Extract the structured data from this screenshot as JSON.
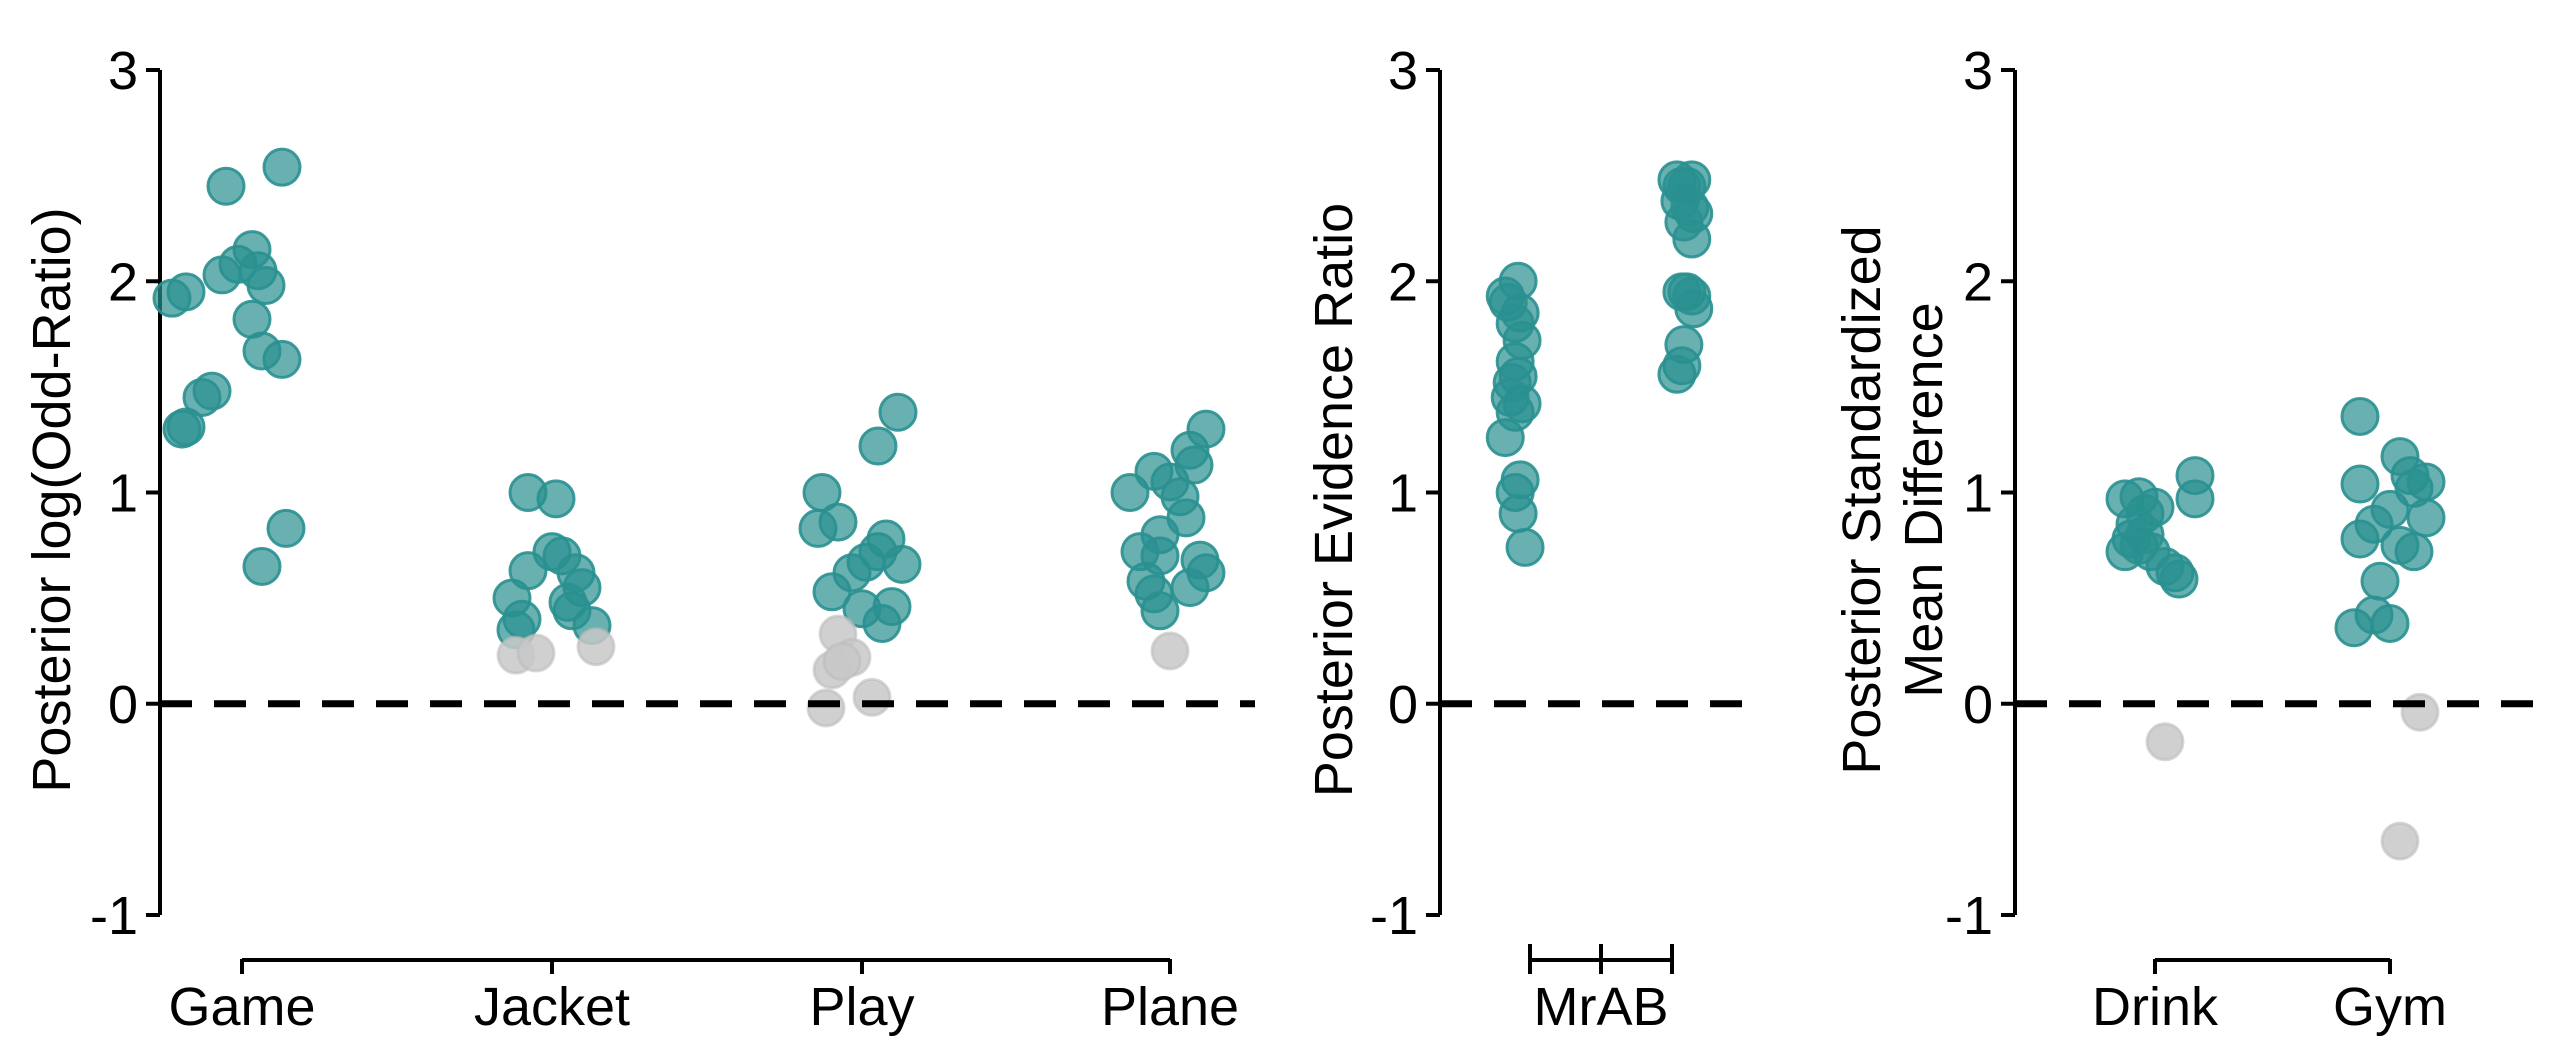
{
  "colors": {
    "significant": "#2a9090",
    "nonsignificant": "#c8c8c8"
  },
  "chart_data": [
    {
      "type": "scatter",
      "ylabel": "Posterior log(Odd-Ratio)",
      "ylim": [
        -1,
        3
      ],
      "yticks": [
        "-1",
        "0",
        "1",
        "2",
        "3"
      ],
      "reference_line": 0,
      "categories": [
        "Game",
        "Jacket",
        "Play",
        "Plane"
      ],
      "points": [
        {
          "c": 0,
          "j": -0.35,
          "y": 1.92,
          "s": 1
        },
        {
          "c": 0,
          "j": -0.28,
          "y": 1.95,
          "s": 1
        },
        {
          "c": 0,
          "j": -0.08,
          "y": 2.45,
          "s": 1
        },
        {
          "c": 0,
          "j": 0.2,
          "y": 2.54,
          "s": 1
        },
        {
          "c": 0,
          "j": -0.1,
          "y": 2.03,
          "s": 1
        },
        {
          "c": 0,
          "j": 0.05,
          "y": 2.15,
          "s": 1
        },
        {
          "c": 0,
          "j": -0.02,
          "y": 2.08,
          "s": 1
        },
        {
          "c": 0,
          "j": 0.08,
          "y": 2.05,
          "s": 1
        },
        {
          "c": 0,
          "j": 0.12,
          "y": 1.98,
          "s": 1
        },
        {
          "c": 0,
          "j": 0.05,
          "y": 1.82,
          "s": 1
        },
        {
          "c": 0,
          "j": 0.1,
          "y": 1.67,
          "s": 1
        },
        {
          "c": 0,
          "j": 0.2,
          "y": 1.63,
          "s": 1
        },
        {
          "c": 0,
          "j": -0.15,
          "y": 1.48,
          "s": 1
        },
        {
          "c": 0,
          "j": -0.2,
          "y": 1.45,
          "s": 1
        },
        {
          "c": 0,
          "j": -0.3,
          "y": 1.3,
          "s": 1
        },
        {
          "c": 0,
          "j": -0.28,
          "y": 1.31,
          "s": 1
        },
        {
          "c": 0,
          "j": 0.22,
          "y": 0.83,
          "s": 1
        },
        {
          "c": 0,
          "j": 0.1,
          "y": 0.65,
          "s": 1
        },
        {
          "c": 1,
          "j": -0.12,
          "y": 1.0,
          "s": 1
        },
        {
          "c": 1,
          "j": 0.02,
          "y": 0.97,
          "s": 1
        },
        {
          "c": 1,
          "j": -0.12,
          "y": 0.63,
          "s": 1
        },
        {
          "c": 1,
          "j": 0.0,
          "y": 0.72,
          "s": 1
        },
        {
          "c": 1,
          "j": 0.05,
          "y": 0.7,
          "s": 1
        },
        {
          "c": 1,
          "j": 0.12,
          "y": 0.62,
          "s": 1
        },
        {
          "c": 1,
          "j": 0.15,
          "y": 0.55,
          "s": 1
        },
        {
          "c": 1,
          "j": -0.2,
          "y": 0.5,
          "s": 1
        },
        {
          "c": 1,
          "j": 0.08,
          "y": 0.48,
          "s": 1
        },
        {
          "c": 1,
          "j": -0.15,
          "y": 0.4,
          "s": 1
        },
        {
          "c": 1,
          "j": 0.2,
          "y": 0.37,
          "s": 1
        },
        {
          "c": 1,
          "j": 0.1,
          "y": 0.44,
          "s": 1
        },
        {
          "c": 1,
          "j": -0.18,
          "y": 0.35,
          "s": 1
        },
        {
          "c": 1,
          "j": -0.18,
          "y": 0.23,
          "s": 0
        },
        {
          "c": 1,
          "j": -0.08,
          "y": 0.24,
          "s": 0
        },
        {
          "c": 1,
          "j": 0.22,
          "y": 0.27,
          "s": 0
        },
        {
          "c": 2,
          "j": -0.2,
          "y": 1.0,
          "s": 1
        },
        {
          "c": 2,
          "j": -0.22,
          "y": 0.83,
          "s": 1
        },
        {
          "c": 2,
          "j": -0.12,
          "y": 0.86,
          "s": 1
        },
        {
          "c": 2,
          "j": 0.08,
          "y": 1.22,
          "s": 1
        },
        {
          "c": 2,
          "j": 0.18,
          "y": 1.38,
          "s": 1
        },
        {
          "c": 2,
          "j": 0.12,
          "y": 0.78,
          "s": 1
        },
        {
          "c": 2,
          "j": 0.08,
          "y": 0.72,
          "s": 1
        },
        {
          "c": 2,
          "j": 0.02,
          "y": 0.67,
          "s": 1
        },
        {
          "c": 2,
          "j": -0.05,
          "y": 0.62,
          "s": 1
        },
        {
          "c": 2,
          "j": 0.2,
          "y": 0.66,
          "s": 1
        },
        {
          "c": 2,
          "j": -0.15,
          "y": 0.53,
          "s": 1
        },
        {
          "c": 2,
          "j": 0.0,
          "y": 0.45,
          "s": 1
        },
        {
          "c": 2,
          "j": 0.15,
          "y": 0.46,
          "s": 1
        },
        {
          "c": 2,
          "j": 0.1,
          "y": 0.38,
          "s": 1
        },
        {
          "c": 2,
          "j": -0.12,
          "y": 0.33,
          "s": 0
        },
        {
          "c": 2,
          "j": -0.05,
          "y": 0.22,
          "s": 0
        },
        {
          "c": 2,
          "j": -0.15,
          "y": 0.16,
          "s": 0
        },
        {
          "c": 2,
          "j": -0.1,
          "y": 0.2,
          "s": 0
        },
        {
          "c": 2,
          "j": 0.05,
          "y": 0.03,
          "s": 0
        },
        {
          "c": 2,
          "j": -0.18,
          "y": -0.02,
          "s": 0
        },
        {
          "c": 3,
          "j": -0.2,
          "y": 1.0,
          "s": 1
        },
        {
          "c": 3,
          "j": -0.08,
          "y": 1.1,
          "s": 1
        },
        {
          "c": 3,
          "j": 0.0,
          "y": 1.05,
          "s": 1
        },
        {
          "c": 3,
          "j": 0.1,
          "y": 1.2,
          "s": 1
        },
        {
          "c": 3,
          "j": 0.18,
          "y": 1.3,
          "s": 1
        },
        {
          "c": 3,
          "j": 0.12,
          "y": 1.13,
          "s": 1
        },
        {
          "c": 3,
          "j": 0.05,
          "y": 0.98,
          "s": 1
        },
        {
          "c": 3,
          "j": -0.05,
          "y": 0.8,
          "s": 1
        },
        {
          "c": 3,
          "j": 0.08,
          "y": 0.88,
          "s": 1
        },
        {
          "c": 3,
          "j": -0.15,
          "y": 0.72,
          "s": 1
        },
        {
          "c": 3,
          "j": -0.05,
          "y": 0.7,
          "s": 1
        },
        {
          "c": 3,
          "j": 0.15,
          "y": 0.68,
          "s": 1
        },
        {
          "c": 3,
          "j": 0.18,
          "y": 0.62,
          "s": 1
        },
        {
          "c": 3,
          "j": -0.12,
          "y": 0.58,
          "s": 1
        },
        {
          "c": 3,
          "j": -0.08,
          "y": 0.52,
          "s": 1
        },
        {
          "c": 3,
          "j": 0.1,
          "y": 0.55,
          "s": 1
        },
        {
          "c": 3,
          "j": -0.05,
          "y": 0.44,
          "s": 1
        },
        {
          "c": 3,
          "j": 0.0,
          "y": 0.25,
          "s": 0
        }
      ]
    },
    {
      "type": "scatter",
      "ylabel": "Posterior Evidence Ratio",
      "ylim": [
        -1,
        3
      ],
      "yticks": [
        "-1",
        "0",
        "1",
        "2",
        "3"
      ],
      "reference_line": 0,
      "categories": [
        "MrAB"
      ],
      "bracket_groups": 2,
      "points": [
        {
          "c": 0,
          "j": -0.12,
          "y": 2.0,
          "s": 1
        },
        {
          "c": 0,
          "j": -0.25,
          "y": 1.93,
          "s": 1
        },
        {
          "c": 0,
          "j": -0.22,
          "y": 1.9,
          "s": 1
        },
        {
          "c": 0,
          "j": -0.1,
          "y": 1.85,
          "s": 1
        },
        {
          "c": 0,
          "j": -0.15,
          "y": 1.8,
          "s": 1
        },
        {
          "c": 0,
          "j": -0.08,
          "y": 1.72,
          "s": 1
        },
        {
          "c": 0,
          "j": -0.15,
          "y": 1.62,
          "s": 1
        },
        {
          "c": 0,
          "j": -0.12,
          "y": 1.55,
          "s": 1
        },
        {
          "c": 0,
          "j": -0.18,
          "y": 1.52,
          "s": 1
        },
        {
          "c": 0,
          "j": -0.2,
          "y": 1.45,
          "s": 1
        },
        {
          "c": 0,
          "j": -0.08,
          "y": 1.42,
          "s": 1
        },
        {
          "c": 0,
          "j": -0.15,
          "y": 1.38,
          "s": 1
        },
        {
          "c": 0,
          "j": -0.25,
          "y": 1.26,
          "s": 1
        },
        {
          "c": 0,
          "j": -0.1,
          "y": 1.06,
          "s": 1
        },
        {
          "c": 0,
          "j": -0.15,
          "y": 1.0,
          "s": 1
        },
        {
          "c": 0,
          "j": -0.12,
          "y": 0.9,
          "s": 1
        },
        {
          "c": 0,
          "j": -0.05,
          "y": 0.74,
          "s": 1
        },
        {
          "c": 1,
          "j": 0.05,
          "y": 2.48,
          "s": 1
        },
        {
          "c": 1,
          "j": 0.1,
          "y": 2.45,
          "s": 1
        },
        {
          "c": 1,
          "j": 0.15,
          "y": 2.45,
          "s": 1
        },
        {
          "c": 1,
          "j": 0.2,
          "y": 2.48,
          "s": 1
        },
        {
          "c": 1,
          "j": 0.08,
          "y": 2.38,
          "s": 1
        },
        {
          "c": 1,
          "j": 0.18,
          "y": 2.35,
          "s": 1
        },
        {
          "c": 1,
          "j": 0.22,
          "y": 2.32,
          "s": 1
        },
        {
          "c": 1,
          "j": 0.12,
          "y": 2.28,
          "s": 1
        },
        {
          "c": 1,
          "j": 0.2,
          "y": 2.2,
          "s": 1
        },
        {
          "c": 1,
          "j": 0.1,
          "y": 1.95,
          "s": 1
        },
        {
          "c": 1,
          "j": 0.15,
          "y": 1.95,
          "s": 1
        },
        {
          "c": 1,
          "j": 0.2,
          "y": 1.93,
          "s": 1
        },
        {
          "c": 1,
          "j": 0.22,
          "y": 1.87,
          "s": 1
        },
        {
          "c": 1,
          "j": 0.12,
          "y": 1.7,
          "s": 1
        },
        {
          "c": 1,
          "j": 0.1,
          "y": 1.6,
          "s": 1
        },
        {
          "c": 1,
          "j": 0.05,
          "y": 1.56,
          "s": 1
        }
      ]
    },
    {
      "type": "scatter",
      "ylabel_lines": [
        "Posterior Standardized",
        "Mean Difference"
      ],
      "ylim": [
        -1,
        3
      ],
      "yticks": [
        "-1",
        "0",
        "1",
        "2",
        "3"
      ],
      "reference_line": 0,
      "categories": [
        "Drink",
        "Gym"
      ],
      "points": [
        {
          "c": 0,
          "j": -0.15,
          "y": 0.97,
          "s": 1
        },
        {
          "c": 0,
          "j": -0.08,
          "y": 0.98,
          "s": 1
        },
        {
          "c": 0,
          "j": 0.0,
          "y": 0.93,
          "s": 1
        },
        {
          "c": 0,
          "j": -0.05,
          "y": 0.9,
          "s": 1
        },
        {
          "c": 0,
          "j": -0.1,
          "y": 0.85,
          "s": 1
        },
        {
          "c": 0,
          "j": -0.05,
          "y": 0.8,
          "s": 1
        },
        {
          "c": 0,
          "j": -0.12,
          "y": 0.78,
          "s": 1
        },
        {
          "c": 0,
          "j": -0.08,
          "y": 0.75,
          "s": 1
        },
        {
          "c": 0,
          "j": -0.02,
          "y": 0.72,
          "s": 1
        },
        {
          "c": 0,
          "j": -0.15,
          "y": 0.72,
          "s": 1
        },
        {
          "c": 0,
          "j": 0.05,
          "y": 0.65,
          "s": 1
        },
        {
          "c": 0,
          "j": 0.1,
          "y": 0.62,
          "s": 1
        },
        {
          "c": 0,
          "j": 0.12,
          "y": 0.59,
          "s": 1
        },
        {
          "c": 0,
          "j": 0.2,
          "y": 1.08,
          "s": 1
        },
        {
          "c": 0,
          "j": 0.2,
          "y": 0.97,
          "s": 1
        },
        {
          "c": 0,
          "j": 0.05,
          "y": -0.18,
          "s": 0
        },
        {
          "c": 1,
          "j": -0.15,
          "y": 1.36,
          "s": 1
        },
        {
          "c": 1,
          "j": 0.05,
          "y": 1.17,
          "s": 1
        },
        {
          "c": 1,
          "j": 0.1,
          "y": 1.08,
          "s": 1
        },
        {
          "c": 1,
          "j": 0.18,
          "y": 1.05,
          "s": 1
        },
        {
          "c": 1,
          "j": 0.12,
          "y": 1.02,
          "s": 1
        },
        {
          "c": 1,
          "j": -0.15,
          "y": 1.04,
          "s": 1
        },
        {
          "c": 1,
          "j": 0.0,
          "y": 0.92,
          "s": 1
        },
        {
          "c": 1,
          "j": -0.08,
          "y": 0.85,
          "s": 1
        },
        {
          "c": 1,
          "j": 0.18,
          "y": 0.88,
          "s": 1
        },
        {
          "c": 1,
          "j": -0.15,
          "y": 0.78,
          "s": 1
        },
        {
          "c": 1,
          "j": 0.05,
          "y": 0.75,
          "s": 1
        },
        {
          "c": 1,
          "j": 0.12,
          "y": 0.72,
          "s": 1
        },
        {
          "c": 1,
          "j": -0.05,
          "y": 0.58,
          "s": 1
        },
        {
          "c": 1,
          "j": -0.08,
          "y": 0.42,
          "s": 1
        },
        {
          "c": 1,
          "j": 0.0,
          "y": 0.38,
          "s": 1
        },
        {
          "c": 1,
          "j": -0.18,
          "y": 0.36,
          "s": 1
        },
        {
          "c": 1,
          "j": 0.15,
          "y": -0.04,
          "s": 0
        },
        {
          "c": 1,
          "j": 0.05,
          "y": -0.65,
          "s": 0
        }
      ]
    }
  ]
}
